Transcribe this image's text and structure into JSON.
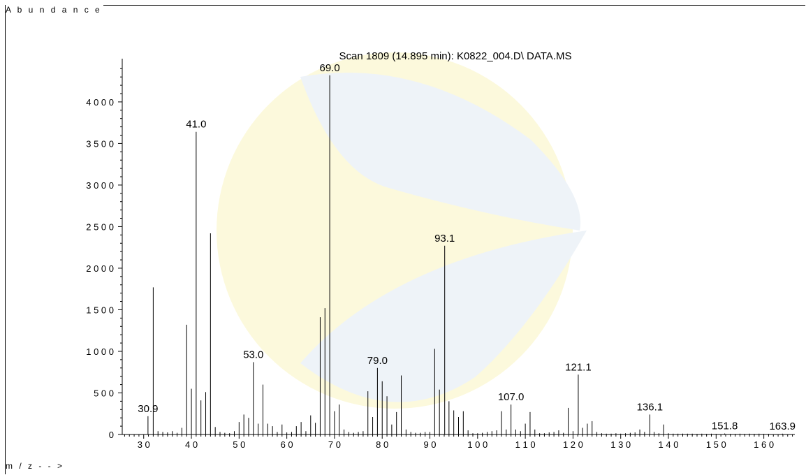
{
  "header": {
    "y_axis_label": "A b u n d a n c e",
    "x_axis_label": "m / z - - >"
  },
  "chart_data": {
    "type": "bar",
    "title": "Scan 1809 (14.895 min): K0822_004.D\\ DATA.MS",
    "xlabel": "m / z - - >",
    "ylabel": "A b u n d a n c e",
    "xlim": [
      25.5,
      166.5
    ],
    "ylim": [
      0,
      4520
    ],
    "x_ticks": [
      30,
      40,
      50,
      60,
      70,
      80,
      90,
      100,
      110,
      120,
      130,
      140,
      150,
      160
    ],
    "x_tick_labels": [
      "3 0",
      "4 0",
      "5 0",
      "6 0",
      "7 0",
      "8 0",
      "9 0",
      "1 0 0",
      "1 1 0",
      "1 2 0",
      "1 3 0",
      "1 4 0",
      "1 5 0",
      "1 6 0"
    ],
    "y_ticks": [
      0,
      500,
      1000,
      1500,
      2000,
      2500,
      3000,
      3500,
      4000
    ],
    "y_tick_labels": [
      "0",
      "5 0 0",
      "1 0 0 0",
      "1 5 0 0",
      "2 0 0 0",
      "2 5 0 0",
      "3 0 0 0",
      "3 5 0 0",
      "4 0 0 0"
    ],
    "series": [
      {
        "peaks": [
          [
            30.9,
            220
          ],
          [
            32.0,
            1770
          ],
          [
            33.0,
            40
          ],
          [
            34.0,
            30
          ],
          [
            35.0,
            25
          ],
          [
            36.0,
            40
          ],
          [
            37.0,
            20
          ],
          [
            38.0,
            80
          ],
          [
            39.0,
            1320
          ],
          [
            40.0,
            550
          ],
          [
            41.0,
            3640
          ],
          [
            42.0,
            410
          ],
          [
            43.0,
            510
          ],
          [
            44.0,
            2420
          ],
          [
            45.0,
            90
          ],
          [
            46.0,
            30
          ],
          [
            47.0,
            20
          ],
          [
            48.0,
            15
          ],
          [
            49.0,
            40
          ],
          [
            50.0,
            150
          ],
          [
            51.0,
            240
          ],
          [
            52.0,
            200
          ],
          [
            53.0,
            870
          ],
          [
            54.0,
            130
          ],
          [
            55.0,
            600
          ],
          [
            56.0,
            130
          ],
          [
            57.0,
            100
          ],
          [
            58.0,
            30
          ],
          [
            59.0,
            120
          ],
          [
            60.0,
            25
          ],
          [
            61.0,
            30
          ],
          [
            62.0,
            100
          ],
          [
            63.0,
            150
          ],
          [
            64.0,
            40
          ],
          [
            65.0,
            230
          ],
          [
            66.0,
            140
          ],
          [
            67.0,
            1410
          ],
          [
            68.0,
            1520
          ],
          [
            69.0,
            4320
          ],
          [
            70.0,
            280
          ],
          [
            71.0,
            360
          ],
          [
            72.0,
            60
          ],
          [
            73.0,
            30
          ],
          [
            74.0,
            20
          ],
          [
            75.0,
            30
          ],
          [
            76.0,
            40
          ],
          [
            77.0,
            520
          ],
          [
            78.0,
            210
          ],
          [
            79.0,
            800
          ],
          [
            80.0,
            640
          ],
          [
            81.0,
            460
          ],
          [
            82.0,
            120
          ],
          [
            83.0,
            270
          ],
          [
            84.0,
            710
          ],
          [
            85.0,
            60
          ],
          [
            86.0,
            30
          ],
          [
            87.0,
            20
          ],
          [
            88.0,
            20
          ],
          [
            89.0,
            30
          ],
          [
            90.0,
            30
          ],
          [
            91.0,
            1030
          ],
          [
            92.0,
            540
          ],
          [
            93.1,
            2270
          ],
          [
            94.0,
            400
          ],
          [
            95.0,
            290
          ],
          [
            96.0,
            210
          ],
          [
            97.0,
            280
          ],
          [
            98.0,
            50
          ],
          [
            99.0,
            15
          ],
          [
            100.0,
            15
          ],
          [
            101.0,
            20
          ],
          [
            102.0,
            30
          ],
          [
            103.0,
            40
          ],
          [
            104.0,
            50
          ],
          [
            105.0,
            280
          ],
          [
            106.0,
            60
          ],
          [
            107.0,
            360
          ],
          [
            108.0,
            60
          ],
          [
            109.0,
            40
          ],
          [
            110.0,
            130
          ],
          [
            111.0,
            270
          ],
          [
            112.0,
            60
          ],
          [
            113.0,
            15
          ],
          [
            114.0,
            15
          ],
          [
            115.0,
            25
          ],
          [
            116.0,
            30
          ],
          [
            117.0,
            50
          ],
          [
            118.0,
            20
          ],
          [
            119.0,
            320
          ],
          [
            120.0,
            40
          ],
          [
            121.1,
            720
          ],
          [
            122.0,
            80
          ],
          [
            123.0,
            130
          ],
          [
            124.0,
            160
          ],
          [
            125.0,
            30
          ],
          [
            126.0,
            15
          ],
          [
            127.0,
            10
          ],
          [
            128.0,
            10
          ],
          [
            129.0,
            15
          ],
          [
            130.0,
            10
          ],
          [
            131.0,
            15
          ],
          [
            132.0,
            20
          ],
          [
            133.0,
            25
          ],
          [
            134.0,
            60
          ],
          [
            135.0,
            30
          ],
          [
            136.1,
            240
          ],
          [
            137.0,
            30
          ],
          [
            138.0,
            15
          ],
          [
            139.0,
            120
          ],
          [
            140.0,
            15
          ],
          [
            141.0,
            10
          ],
          [
            142.0,
            10
          ],
          [
            143.0,
            10
          ],
          [
            144.0,
            10
          ],
          [
            145.0,
            10
          ],
          [
            146.0,
            8
          ],
          [
            147.0,
            10
          ],
          [
            148.0,
            8
          ],
          [
            149.0,
            10
          ],
          [
            150.0,
            8
          ],
          [
            151.8,
            12
          ],
          [
            153.0,
            8
          ],
          [
            154.0,
            8
          ],
          [
            155.0,
            10
          ],
          [
            156.0,
            8
          ],
          [
            157.0,
            10
          ],
          [
            158.0,
            8
          ],
          [
            159.0,
            10
          ],
          [
            160.0,
            8
          ],
          [
            161.0,
            8
          ],
          [
            163.9,
            10
          ]
        ]
      }
    ],
    "annotations": [
      {
        "x": 30.9,
        "y": 220,
        "text": "30.9"
      },
      {
        "x": 41.0,
        "y": 3640,
        "text": "41.0"
      },
      {
        "x": 53.0,
        "y": 870,
        "text": "53.0"
      },
      {
        "x": 69.0,
        "y": 4320,
        "text": "69.0"
      },
      {
        "x": 79.0,
        "y": 800,
        "text": "79.0"
      },
      {
        "x": 93.1,
        "y": 2270,
        "text": "93.1"
      },
      {
        "x": 107.0,
        "y": 360,
        "text": "107.0"
      },
      {
        "x": 121.1,
        "y": 720,
        "text": "121.1"
      },
      {
        "x": 136.1,
        "y": 240,
        "text": "136.1"
      },
      {
        "x": 151.8,
        "y": 12,
        "text": "151.8"
      },
      {
        "x": 163.9,
        "y": 10,
        "text": "163.9"
      }
    ],
    "grid": false,
    "colors": {
      "bars": "#000000",
      "watermark_a": "#fbf7d2",
      "watermark_b": "#eef3f8"
    }
  }
}
